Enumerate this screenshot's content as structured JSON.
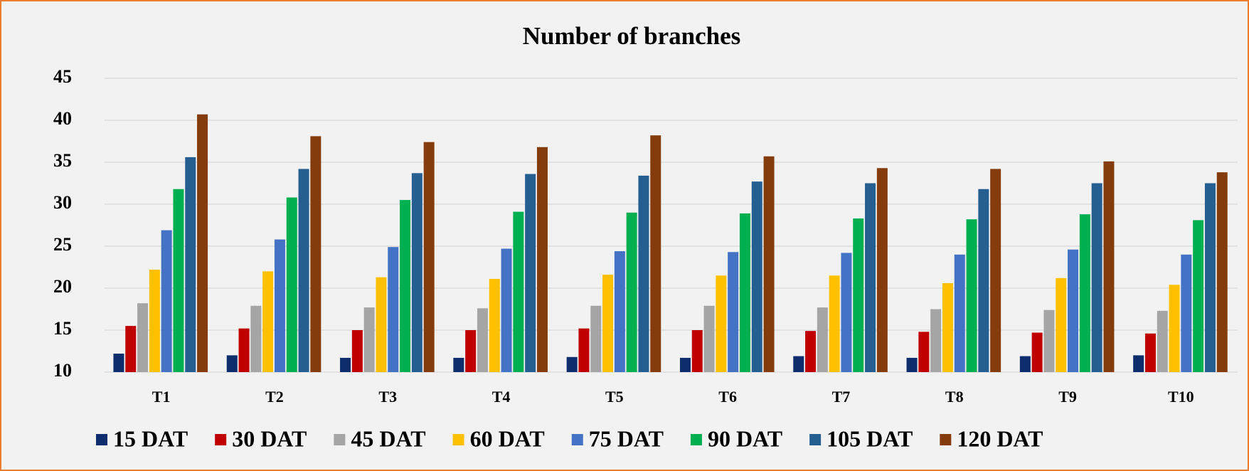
{
  "chart_data": {
    "type": "bar",
    "title": "Number of branches",
    "categories": [
      "T1",
      "T2",
      "T3",
      "T4",
      "T5",
      "T6",
      "T7",
      "T8",
      "T9",
      "T10"
    ],
    "series": [
      {
        "name": "15 DAT",
        "color": "#0d2d6c",
        "values": [
          12.2,
          12.0,
          11.7,
          11.7,
          11.8,
          11.7,
          11.9,
          11.7,
          11.9,
          12.0
        ]
      },
      {
        "name": "30 DAT",
        "color": "#c00000",
        "values": [
          15.5,
          15.2,
          15.0,
          15.0,
          15.2,
          15.0,
          14.9,
          14.8,
          14.7,
          14.6
        ]
      },
      {
        "name": "45 DAT",
        "color": "#a5a5a5",
        "values": [
          18.2,
          17.9,
          17.7,
          17.6,
          17.9,
          17.9,
          17.7,
          17.5,
          17.4,
          17.3
        ]
      },
      {
        "name": "60 DAT",
        "color": "#ffc000",
        "values": [
          22.2,
          22.0,
          21.3,
          21.1,
          21.6,
          21.5,
          21.5,
          20.6,
          21.2,
          20.4
        ]
      },
      {
        "name": "75 DAT",
        "color": "#4472c4",
        "values": [
          26.9,
          25.8,
          24.9,
          24.7,
          24.4,
          24.3,
          24.2,
          24.0,
          24.6,
          24.0
        ]
      },
      {
        "name": "90 DAT",
        "color": "#00b050",
        "values": [
          31.8,
          30.8,
          30.5,
          29.1,
          29.0,
          28.9,
          28.3,
          28.2,
          28.8,
          28.1
        ]
      },
      {
        "name": "105 DAT",
        "color": "#255e91",
        "values": [
          35.6,
          34.2,
          33.7,
          33.6,
          33.4,
          32.7,
          32.5,
          31.8,
          32.5,
          32.5
        ]
      },
      {
        "name": "120 DAT",
        "color": "#843c0c",
        "values": [
          40.7,
          38.1,
          37.4,
          36.8,
          38.2,
          35.7,
          34.3,
          34.2,
          35.1,
          33.8
        ]
      }
    ],
    "ylim": [
      10,
      45
    ],
    "yticks": [
      10,
      15,
      20,
      25,
      30,
      35,
      40,
      45
    ],
    "grid": true
  }
}
